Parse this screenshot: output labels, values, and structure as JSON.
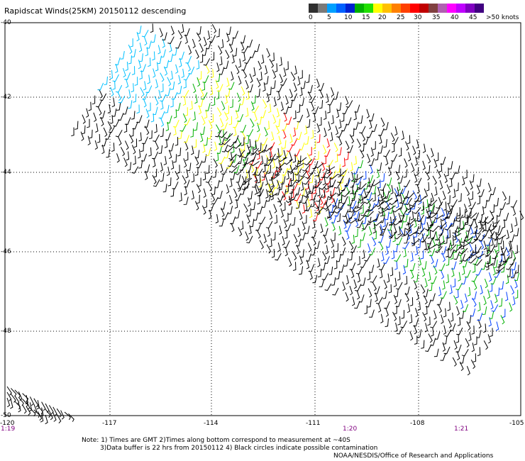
{
  "title": "Rapidscat Winds(25KM) 20150112 descending",
  "legend": {
    "colors": [
      "#303030",
      "#7a7a7a",
      "#00a0ff",
      "#0060ff",
      "#0020d0",
      "#00b000",
      "#20e000",
      "#ffff00",
      "#ffc000",
      "#ff8000",
      "#ff4000",
      "#ff0000",
      "#c00000",
      "#804040",
      "#b060b0",
      "#ff00ff",
      "#c000ff",
      "#8000c0",
      "#400080"
    ],
    "labels": [
      "0",
      "5",
      "10",
      "15",
      "20",
      "25",
      "30",
      "35",
      "40",
      "45",
      ">50 knots"
    ]
  },
  "axes": {
    "lat_labels": [
      "-40",
      "-42",
      "-44",
      "-46",
      "-48",
      "-50"
    ],
    "lon_labels": [
      "-120",
      "-117",
      "-114",
      "-111",
      "-108",
      "-105"
    ]
  },
  "times": [
    "1:19",
    "1:20",
    "1:21"
  ],
  "notes": {
    "line1": "Note: 1) Times are GMT 2)Times along bottom correspond to measurement at ~40S",
    "line2": "3)Data buffer is 22 hrs from 20150112 4) Black circles indicate possible contamination",
    "line3": "NOAA/NESDIS/Office of Research and Applications"
  },
  "colors": {
    "calm": "#000000",
    "light": "#00c0ff",
    "moderate": "#00b000",
    "fresh": "#ffff00",
    "strong": "#ff0000",
    "blue": "#0040ff",
    "grid": "#000000",
    "time": "#800080"
  }
}
